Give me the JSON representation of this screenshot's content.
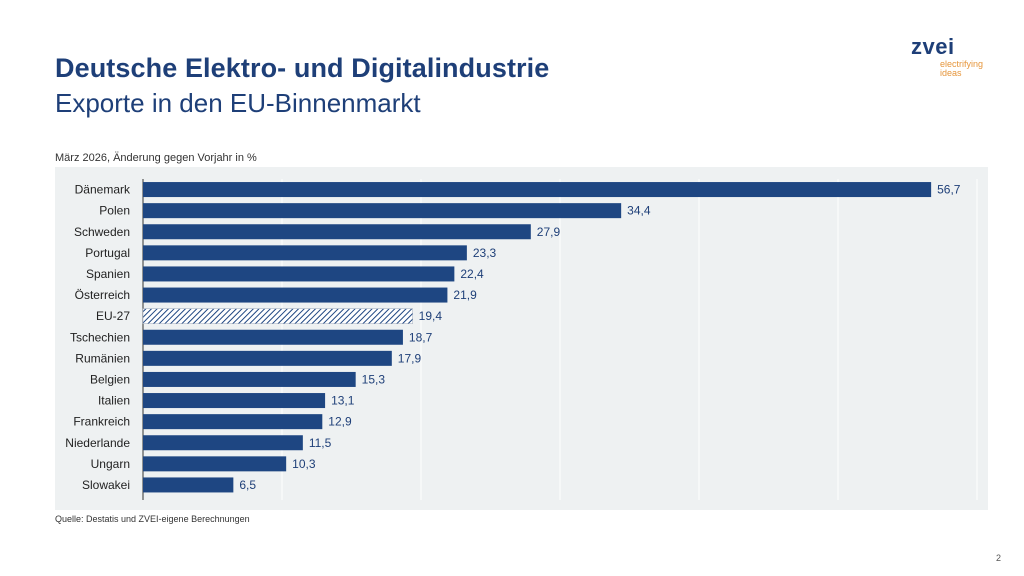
{
  "header": {
    "title": "Deutsche Elektro- und Digitalindustrie",
    "subtitle": "Exporte in den EU-Binnenmarkt"
  },
  "logo": {
    "word": "zvei",
    "tagline_line1": "electrifying",
    "tagline_line2": "ideas",
    "colors": {
      "word": "#1e3f78",
      "tagline": "#e6963c"
    }
  },
  "chart_note": "März 2026, Änderung gegen Vorjahr in %",
  "source": "Quelle: Destatis und ZVEI-eigene Berechnungen",
  "page_number": "2",
  "chart_data": {
    "type": "bar",
    "orientation": "horizontal",
    "title": "",
    "xlabel": "",
    "ylabel": "",
    "xlim": [
      0,
      60
    ],
    "grid": true,
    "legend": "none",
    "colors": {
      "bar": "#1e4682",
      "highlight_hatch": "#1e4682",
      "panel": "#eef1f2",
      "grid": "#ffffff"
    },
    "highlight_category": "EU-27",
    "categories": [
      "Dänemark",
      "Polen",
      "Schweden",
      "Portugal",
      "Spanien",
      "Österreich",
      "EU-27",
      "Tschechien",
      "Rumänien",
      "Belgien",
      "Italien",
      "Frankreich",
      "Niederlande",
      "Ungarn",
      "Slowakei"
    ],
    "values": [
      56.7,
      34.4,
      27.9,
      23.3,
      22.4,
      21.9,
      19.4,
      18.7,
      17.9,
      15.3,
      13.1,
      12.9,
      11.5,
      10.3,
      6.5
    ],
    "value_labels": [
      "56,7",
      "34,4",
      "27,9",
      "23,3",
      "22,4",
      "21,9",
      "19,4",
      "18,7",
      "17,9",
      "15,3",
      "13,1",
      "12,9",
      "11,5",
      "10,3",
      "6,5"
    ]
  }
}
